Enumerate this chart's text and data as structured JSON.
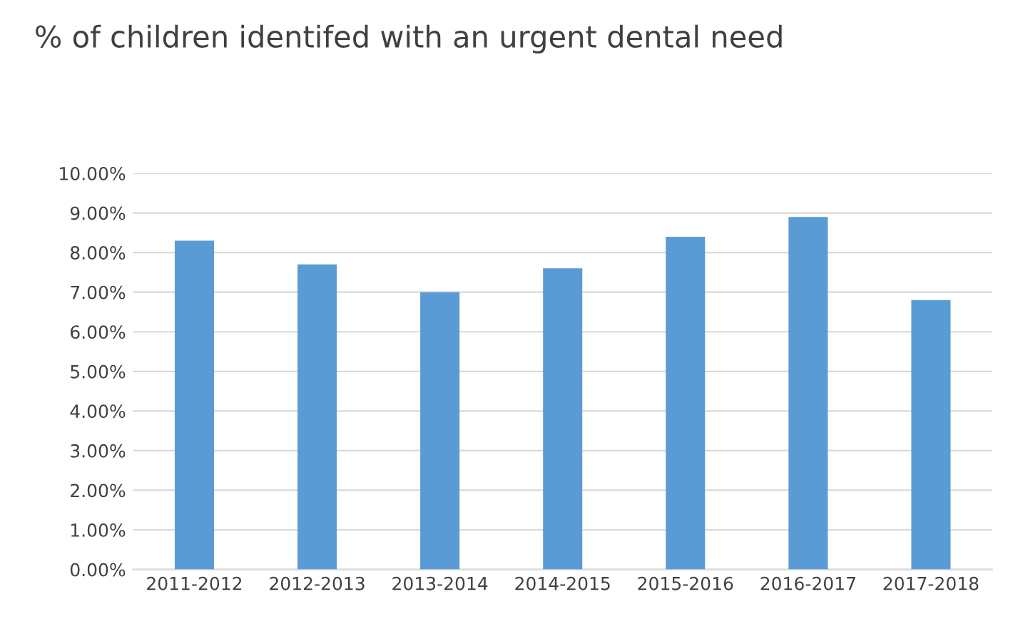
{
  "chart_data": {
    "type": "bar",
    "title": "% of children identifed with an urgent dental need",
    "categories": [
      "2011-2012",
      "2012-2013",
      "2013-2014",
      "2014-2015",
      "2015-2016",
      "2016-2017",
      "2017-2018"
    ],
    "values": [
      8.3,
      7.7,
      7.0,
      7.6,
      8.4,
      8.9,
      6.8
    ],
    "color": "#5b9bd5",
    "ylim": [
      0,
      10
    ],
    "yticks": [
      {
        "value": 0,
        "label": "0.00%"
      },
      {
        "value": 1,
        "label": "1.00%"
      },
      {
        "value": 2,
        "label": "2.00%"
      },
      {
        "value": 3,
        "label": "3.00%"
      },
      {
        "value": 4,
        "label": "4.00%"
      },
      {
        "value": 5,
        "label": "5.00%"
      },
      {
        "value": 6,
        "label": "6.00%"
      },
      {
        "value": 7,
        "label": "7.00%"
      },
      {
        "value": 8,
        "label": "8.00%"
      },
      {
        "value": 9,
        "label": "9.00%"
      },
      {
        "value": 10,
        "label": "10.00%"
      }
    ],
    "grid": "y"
  }
}
